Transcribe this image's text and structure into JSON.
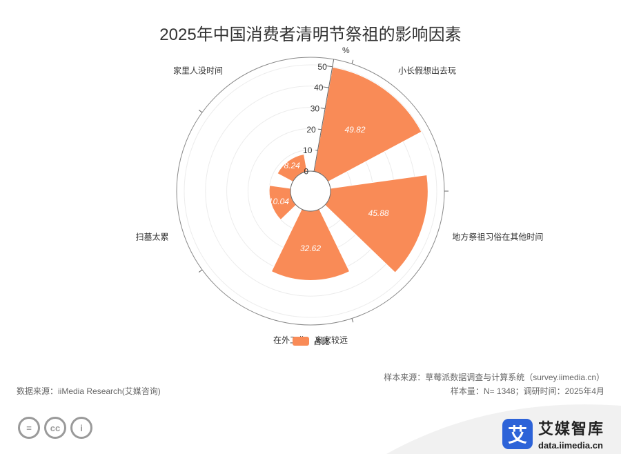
{
  "title": "2025年中国消费者清明节祭祖的影响因素",
  "chart_data": {
    "type": "polar-bar",
    "unit": "%",
    "radial_max": 50,
    "radial_ticks": [
      0,
      10,
      20,
      30,
      40,
      50
    ],
    "categories": [
      "小长假想出去玩",
      "地方祭祖习俗在其他时间",
      "在外工作，离家较远",
      "扫墓太累",
      "家里人没时间"
    ],
    "series": [
      {
        "name": "占比",
        "values": [
          49.82,
          45.88,
          32.62,
          10.04,
          8.24
        ]
      }
    ],
    "color": "#f98b57",
    "legend_position": "bottom"
  },
  "footer": {
    "source_left": "数据来源：iiMedia Research(艾媒咨询)",
    "sample_source": "样本来源：草莓派数据调查与计算系统（survey.iimedia.cn）",
    "sample_size": "样本量：N= 1348；调研时间：2025年4月"
  },
  "brand": {
    "logo_char": "艾",
    "name": "艾媒智库",
    "url": "data.iimedia.cn"
  },
  "license_icons": [
    "=",
    "cc",
    "i"
  ]
}
